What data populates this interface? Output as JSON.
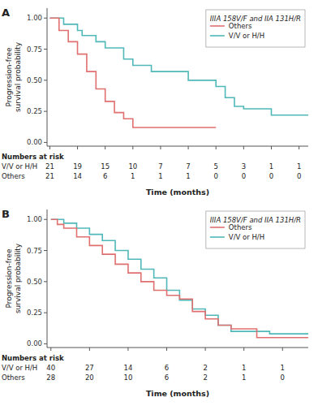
{
  "chart_data": [
    {
      "type": "step",
      "title": "A",
      "y_label": "Progression-free\nsurvival probability",
      "x_label": "Time (months)",
      "xlim": [
        -0.3,
        28
      ],
      "xticks": [
        0,
        3,
        6,
        9,
        12,
        15,
        18,
        21,
        24,
        27
      ],
      "ylim": [
        -0.03,
        1.08
      ],
      "yticks": [
        {
          "value": 0.0,
          "label": "0.00"
        },
        {
          "value": 0.25,
          "label": "0.25"
        },
        {
          "value": 0.5,
          "label": "0.50"
        },
        {
          "value": 0.75,
          "label": "0.75"
        },
        {
          "value": 1.0,
          "label": "1.00"
        }
      ],
      "tick_labels": "y",
      "grid": false,
      "legend": "upper right",
      "legend_title": "IIIA 158V/F and IIA 131H/R",
      "series": [
        {
          "name": "V/V or H/H",
          "color": "#50B8B8",
          "x": [
            0,
            1,
            1.5,
            2,
            3,
            3.5,
            4,
            5,
            6,
            7,
            8,
            9,
            10,
            11,
            12,
            15,
            18,
            19,
            20,
            21,
            24,
            27,
            28
          ],
          "values": [
            1.0,
            1.0,
            0.95,
            0.95,
            0.9,
            0.86,
            0.86,
            0.81,
            0.76,
            0.76,
            0.67,
            0.62,
            0.62,
            0.57,
            0.57,
            0.5,
            0.45,
            0.36,
            0.29,
            0.27,
            0.22,
            0.22,
            0.22
          ]
        },
        {
          "name": "Others",
          "color": "#E07070",
          "x": [
            0,
            1,
            2,
            3,
            4,
            5,
            6,
            7,
            8,
            9,
            17,
            18
          ],
          "values": [
            1.0,
            0.9,
            0.81,
            0.71,
            0.57,
            0.43,
            0.33,
            0.24,
            0.19,
            0.12,
            0.12,
            0.12
          ]
        }
      ],
      "risk_table": {
        "title": "Numbers at risk",
        "x": [
          0,
          3,
          6,
          9,
          12,
          15,
          18,
          21,
          24,
          27
        ],
        "rows": [
          {
            "name": "V/V or H/H",
            "values": [
              21,
              19,
              15,
              10,
              7,
              7,
              5,
              3,
              1,
              1
            ]
          },
          {
            "name": "Others",
            "values": [
              21,
              14,
              6,
              1,
              1,
              1,
              0,
              0,
              0,
              0
            ]
          }
        ]
      }
    },
    {
      "type": "step",
      "title": "B",
      "y_label": "Progression-free\nsurvival probability",
      "x_label": "Time (months)",
      "xlim": [
        -0.3,
        20
      ],
      "xticks": [
        0,
        3,
        6,
        9,
        12,
        15,
        18
      ],
      "ylim": [
        -0.03,
        1.08
      ],
      "yticks": [
        {
          "value": 0.0,
          "label": "0.00"
        },
        {
          "value": 0.25,
          "label": "0.25"
        },
        {
          "value": 0.5,
          "label": "0.50"
        },
        {
          "value": 0.75,
          "label": "0.75"
        },
        {
          "value": 1.0,
          "label": "1.00"
        }
      ],
      "tick_labels": "y",
      "grid": false,
      "legend": "upper right",
      "legend_title": "IIIA 158V/F and IIA 131H/R",
      "series": [
        {
          "name": "V/V or H/H",
          "color": "#50B8B8",
          "x": [
            0,
            0.5,
            1,
            2,
            3,
            4,
            5,
            6,
            7,
            8,
            9,
            10,
            11,
            12,
            13,
            14,
            15,
            16,
            17,
            18,
            19,
            20
          ],
          "values": [
            1.0,
            1.0,
            0.97,
            0.93,
            0.88,
            0.83,
            0.75,
            0.68,
            0.6,
            0.53,
            0.43,
            0.35,
            0.28,
            0.23,
            0.15,
            0.1,
            0.1,
            0.1,
            0.08,
            0.08,
            0.08,
            0.08
          ]
        },
        {
          "name": "Others",
          "color": "#E07070",
          "x": [
            0,
            0.5,
            1,
            2,
            3,
            4,
            5,
            6,
            7,
            8,
            9,
            10,
            11,
            12,
            13,
            14,
            15,
            16,
            19,
            20
          ],
          "values": [
            1.0,
            0.96,
            0.93,
            0.86,
            0.79,
            0.72,
            0.64,
            0.57,
            0.5,
            0.43,
            0.39,
            0.36,
            0.26,
            0.2,
            0.15,
            0.12,
            0.12,
            0.05,
            0.05,
            0.05
          ]
        }
      ],
      "risk_table": {
        "title": "Numbers at risk",
        "x": [
          0,
          3,
          6,
          9,
          12,
          15,
          18
        ],
        "rows": [
          {
            "name": "V/V or H/H",
            "values": [
              40,
              27,
              14,
              6,
              2,
              1,
              1
            ]
          },
          {
            "name": "Others",
            "values": [
              28,
              20,
              10,
              6,
              2,
              1,
              0
            ]
          }
        ]
      }
    }
  ]
}
